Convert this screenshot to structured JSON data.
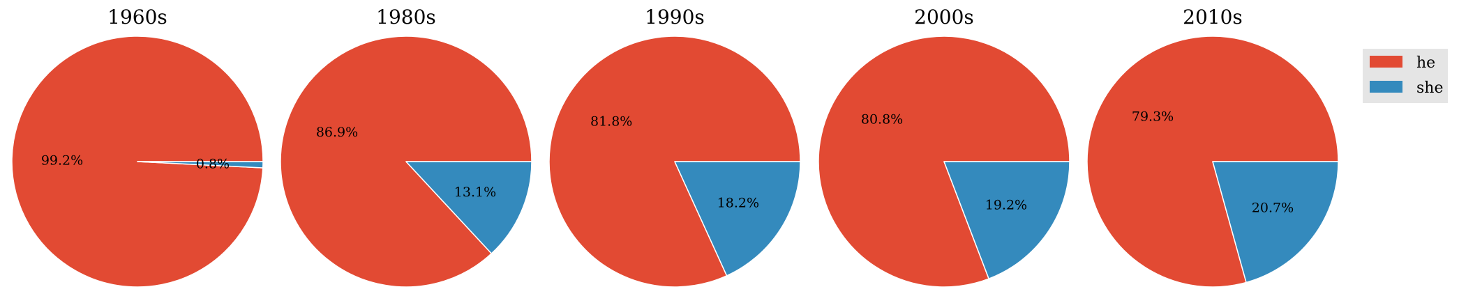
{
  "chart_data": {
    "type": "pie",
    "legend": {
      "placement": "top-right",
      "entries": [
        {
          "label": "he",
          "color": "#E24A33"
        },
        {
          "label": "she",
          "color": "#348ABD"
        }
      ]
    },
    "charts": [
      {
        "title": "1960s",
        "slices": [
          {
            "label": "he",
            "value": 99.2,
            "text": "99.2%"
          },
          {
            "label": "she",
            "value": 0.8,
            "text": "0.8%"
          }
        ]
      },
      {
        "title": "1980s",
        "slices": [
          {
            "label": "he",
            "value": 86.9,
            "text": "86.9%"
          },
          {
            "label": "she",
            "value": 13.1,
            "text": "13.1%"
          }
        ]
      },
      {
        "title": "1990s",
        "slices": [
          {
            "label": "he",
            "value": 81.8,
            "text": "81.8%"
          },
          {
            "label": "she",
            "value": 18.2,
            "text": "18.2%"
          }
        ]
      },
      {
        "title": "2000s",
        "slices": [
          {
            "label": "he",
            "value": 80.8,
            "text": "80.8%"
          },
          {
            "label": "she",
            "value": 19.2,
            "text": "19.2%"
          }
        ]
      },
      {
        "title": "2010s",
        "slices": [
          {
            "label": "he",
            "value": 79.3,
            "text": "79.3%"
          },
          {
            "label": "she",
            "value": 20.7,
            "text": "20.7%"
          }
        ]
      }
    ]
  }
}
